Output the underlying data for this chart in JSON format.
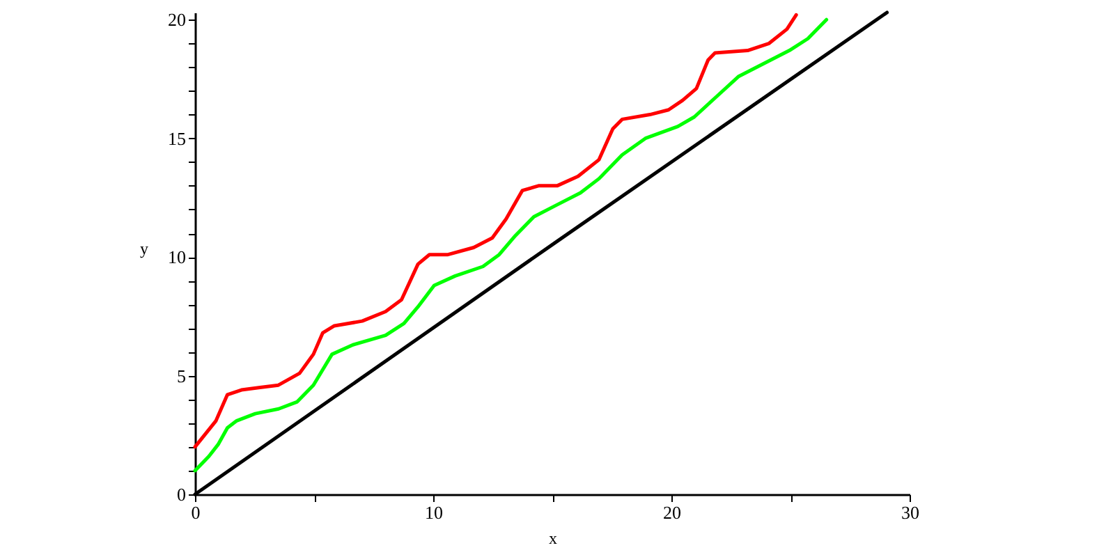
{
  "chart_data": {
    "type": "line",
    "xlabel": "x",
    "ylabel": "y",
    "xlim": [
      0,
      30
    ],
    "ylim": [
      0,
      20.3
    ],
    "xticks": [
      0,
      {
        "value": 5,
        "label": null
      },
      10,
      {
        "value": 15,
        "label": null
      },
      20,
      {
        "value": 25,
        "label": null
      },
      30
    ],
    "yticks": [
      0,
      {
        "value": 1,
        "label": null
      },
      {
        "value": 2,
        "label": null
      },
      {
        "value": 3,
        "label": null
      },
      {
        "value": 4,
        "label": null
      },
      5,
      {
        "value": 6,
        "label": null
      },
      {
        "value": 7,
        "label": null
      },
      {
        "value": 8,
        "label": null
      },
      {
        "value": 9,
        "label": null
      },
      10,
      {
        "value": 11,
        "label": null
      },
      {
        "value": 12,
        "label": null
      },
      {
        "value": 13,
        "label": null
      },
      {
        "value": 14,
        "label": null
      },
      15,
      {
        "value": 16,
        "label": null
      },
      {
        "value": 17,
        "label": null
      },
      {
        "value": 18,
        "label": null
      },
      {
        "value": 19,
        "label": null
      },
      20
    ],
    "line_style": "solid",
    "series": [
      {
        "color": "#ff0000",
        "x": [
          0,
          0.88,
          1.36,
          1.95,
          2.73,
          3.5,
          4.39,
          4.97,
          5.36,
          5.85,
          7.02,
          8.0,
          8.67,
          9.36,
          9.84,
          10.62,
          11.7,
          12.48,
          13.06,
          13.74,
          14.42,
          15.2,
          16.08,
          16.96,
          17.54,
          17.93,
          19.1,
          19.88,
          20.47,
          21.05,
          21.54,
          21.83,
          23.2,
          24.1,
          24.85,
          25.24
        ],
        "values": [
          2.0,
          3.1,
          4.2,
          4.4,
          4.5,
          4.6,
          5.1,
          5.9,
          6.8,
          7.1,
          7.3,
          7.7,
          8.2,
          9.7,
          10.1,
          10.1,
          10.4,
          10.8,
          11.6,
          12.8,
          13.0,
          13.0,
          13.4,
          14.1,
          15.4,
          15.8,
          16.0,
          16.2,
          16.6,
          17.1,
          18.3,
          18.6,
          18.7,
          19.0,
          19.6,
          20.2
        ]
      },
      {
        "color": "#00ff00",
        "x": [
          0,
          0.58,
          0.97,
          1.36,
          1.75,
          2.53,
          3.51,
          4.29,
          4.97,
          5.75,
          6.63,
          8.0,
          8.77,
          9.36,
          10.04,
          10.92,
          12.09,
          12.77,
          13.45,
          14.23,
          15.2,
          16.18,
          16.96,
          17.93,
          18.91,
          20.27,
          20.96,
          21.83,
          22.81,
          23.78,
          24.95,
          25.73,
          26.51
        ],
        "values": [
          1.0,
          1.6,
          2.1,
          2.8,
          3.1,
          3.4,
          3.6,
          3.9,
          4.6,
          5.9,
          6.3,
          6.7,
          7.2,
          7.9,
          8.8,
          9.2,
          9.6,
          10.1,
          10.9,
          11.7,
          12.2,
          12.7,
          13.3,
          14.3,
          15.0,
          15.5,
          15.9,
          16.7,
          17.6,
          18.1,
          18.7,
          19.2,
          20.0
        ]
      },
      {
        "color": "#000000",
        "x": [
          0,
          15.2,
          29.05
        ],
        "values": [
          0,
          10.66,
          20.3
        ]
      }
    ]
  }
}
